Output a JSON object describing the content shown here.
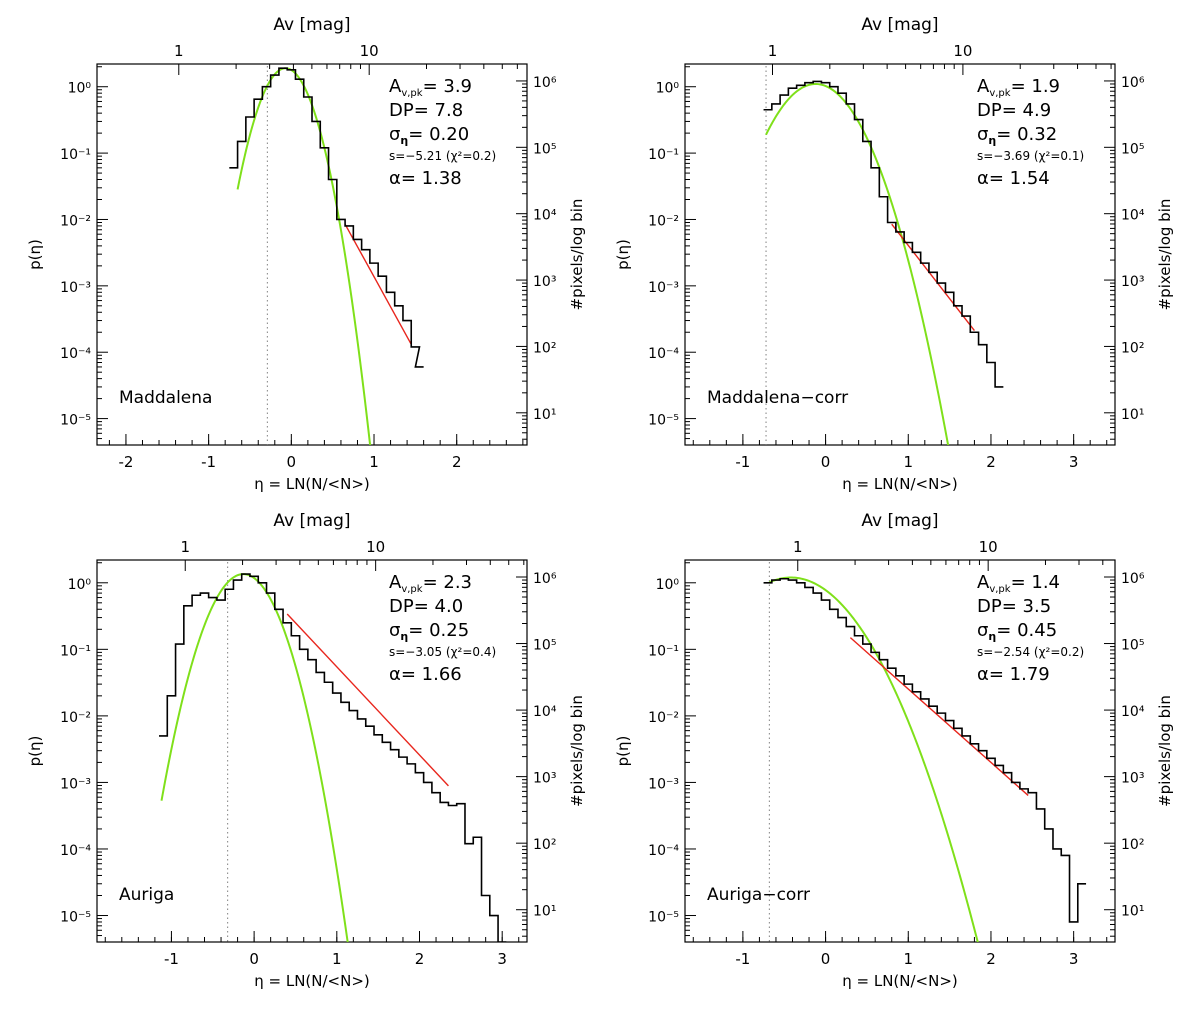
{
  "figure": {
    "panel_count": 4
  },
  "colors": {
    "histogram": "#000000",
    "lognormal_fit": "#7fe01a",
    "powerlaw_fit": "#e8261d",
    "threshold_line": "#808080"
  },
  "chart_data": [
    {
      "type": "line",
      "panel_label": "Maddalena",
      "xlabel": "η = LN(N/<N>)",
      "ylabel": "p(η)",
      "ylabel_right": "#pixels/log bin",
      "top_axis_label": "Av [mag]",
      "xlim": [
        -2.35,
        2.85
      ],
      "ylim": [
        4e-06,
        2.2
      ],
      "x_ticks": [
        -2,
        -1,
        0,
        1,
        2
      ],
      "y_ticks": [
        1e-05,
        0.0001,
        0.001,
        0.01,
        0.1,
        1
      ],
      "y_tick_labels": [
        "10⁻⁵",
        "10⁻⁴",
        "10⁻³",
        "10⁻²",
        "10⁻¹",
        "10⁰"
      ],
      "right_ticks": [
        10,
        100,
        1000,
        10000,
        100000,
        1000000
      ],
      "right_tick_labels": [
        "10¹",
        "10²",
        "10³",
        "10⁴",
        "10⁵",
        "10⁶"
      ],
      "right_max_count": 1800000,
      "top_ticks": [
        1,
        10
      ],
      "top_tick_labels": [
        "1",
        "10"
      ],
      "top_ref_av": 3.9,
      "threshold_eta": -0.29,
      "annotations": {
        "avpk": "A",
        "avpk_sub": "v,pk",
        "avpk_value": "= 3.9",
        "dp": "DP= 7.8",
        "sigma": "σ",
        "sigma_sub": "η",
        "sigma_value": "= 0.20",
        "slope": "s=−5.21 (χ²=0.2)",
        "alpha": "α= 1.38"
      },
      "lognormal": {
        "amplitude": 1.9,
        "mean": -0.07,
        "sigma": 0.2,
        "x_range": [
          -0.65,
          1.0
        ]
      },
      "powerlaw": {
        "slope": -5.21,
        "x_range": [
          0.65,
          1.45
        ],
        "y_start": 0.0085
      },
      "histogram": {
        "x": [
          -0.7,
          -0.6,
          -0.5,
          -0.4,
          -0.3,
          -0.2,
          -0.1,
          0.0,
          0.1,
          0.2,
          0.3,
          0.4,
          0.5,
          0.6,
          0.7,
          0.8,
          0.9,
          1.0,
          1.1,
          1.2,
          1.3,
          1.4,
          1.5,
          1.55
        ],
        "y": [
          0.06,
          0.15,
          0.35,
          0.65,
          1.0,
          1.5,
          1.9,
          1.8,
          1.3,
          0.7,
          0.3,
          0.12,
          0.04,
          0.01,
          0.008,
          0.005,
          0.0035,
          0.0022,
          0.0014,
          0.0008,
          0.0005,
          0.0003,
          0.00012,
          6e-05
        ]
      }
    },
    {
      "type": "line",
      "panel_label": "Maddalena−corr",
      "xlabel": "η = LN(N/<N>)",
      "ylabel": "p(η)",
      "ylabel_right": "#pixels/log bin",
      "top_axis_label": "Av [mag]",
      "xlim": [
        -1.7,
        3.5
      ],
      "ylim": [
        4e-06,
        2.2
      ],
      "x_ticks": [
        -1,
        0,
        1,
        2,
        3
      ],
      "y_ticks": [
        1e-05,
        0.0001,
        0.001,
        0.01,
        0.1,
        1
      ],
      "y_tick_labels": [
        "10⁻⁵",
        "10⁻⁴",
        "10⁻³",
        "10⁻²",
        "10⁻¹",
        "10⁰"
      ],
      "right_ticks": [
        10,
        100,
        1000,
        10000,
        100000,
        1000000
      ],
      "right_tick_labels": [
        "10¹",
        "10²",
        "10³",
        "10⁴",
        "10⁵",
        "10⁶"
      ],
      "right_max_count": 1800000,
      "top_ticks": [
        1,
        10
      ],
      "top_tick_labels": [
        "1",
        "10"
      ],
      "top_ref_av": 1.9,
      "threshold_eta": -0.72,
      "annotations": {
        "avpk": "A",
        "avpk_sub": "v,pk",
        "avpk_value": "= 1.9",
        "dp": "DP= 4.9",
        "sigma": "σ",
        "sigma_sub": "η",
        "sigma_value": "= 0.32",
        "slope": "s=−3.69 (χ²=0.1)",
        "alpha": "α= 1.54"
      },
      "lognormal": {
        "amplitude": 1.1,
        "mean": -0.12,
        "sigma": 0.32,
        "x_range": [
          -0.72,
          1.5
        ]
      },
      "powerlaw": {
        "slope": -3.69,
        "x_range": [
          0.8,
          1.8
        ],
        "y_start": 0.0085
      },
      "histogram": {
        "x": [
          -0.7,
          -0.6,
          -0.5,
          -0.4,
          -0.3,
          -0.2,
          -0.1,
          0.0,
          0.1,
          0.2,
          0.3,
          0.4,
          0.5,
          0.6,
          0.7,
          0.8,
          0.9,
          1.0,
          1.1,
          1.2,
          1.3,
          1.4,
          1.5,
          1.6,
          1.7,
          1.8,
          1.9,
          2.0,
          2.1
        ],
        "y": [
          0.45,
          0.55,
          0.75,
          0.95,
          1.05,
          1.15,
          1.2,
          1.15,
          1.0,
          0.8,
          0.55,
          0.32,
          0.15,
          0.06,
          0.022,
          0.009,
          0.0065,
          0.0045,
          0.0032,
          0.0022,
          0.0016,
          0.0011,
          0.0008,
          0.0005,
          0.00035,
          0.0002,
          0.00013,
          7e-05,
          3e-05
        ]
      }
    },
    {
      "type": "line",
      "panel_label": "Auriga",
      "xlabel": "η = LN(N/<N>)",
      "ylabel": "p(η)",
      "ylabel_right": "#pixels/log bin",
      "top_axis_label": "Av [mag]",
      "xlim": [
        -1.9,
        3.3
      ],
      "ylim": [
        4e-06,
        2.2
      ],
      "x_ticks": [
        -1,
        0,
        1,
        2,
        3
      ],
      "y_ticks": [
        1e-05,
        0.0001,
        0.001,
        0.01,
        0.1,
        1
      ],
      "y_tick_labels": [
        "10⁻⁵",
        "10⁻⁴",
        "10⁻³",
        "10⁻²",
        "10⁻¹",
        "10⁰"
      ],
      "right_ticks": [
        10,
        100,
        1000,
        10000,
        100000,
        1000000
      ],
      "right_tick_labels": [
        "10¹",
        "10²",
        "10³",
        "10⁴",
        "10⁵",
        "10⁶"
      ],
      "right_max_count": 1800000,
      "top_ticks": [
        1,
        10
      ],
      "top_tick_labels": [
        "1",
        "10"
      ],
      "top_ref_av": 2.3,
      "threshold_eta": -0.32,
      "annotations": {
        "avpk": "A",
        "avpk_sub": "v,pk",
        "avpk_value": "= 2.3",
        "dp": "DP= 4.0",
        "sigma": "σ",
        "sigma_sub": "η",
        "sigma_value": "= 0.25",
        "slope": "s=−3.05 (χ²=0.4)",
        "alpha": "α= 1.66"
      },
      "lognormal": {
        "amplitude": 1.35,
        "mean": -0.13,
        "sigma": 0.25,
        "x_range": [
          -1.12,
          1.2
        ]
      },
      "powerlaw": {
        "slope": -3.05,
        "x_range": [
          0.4,
          2.35
        ],
        "y_start": 0.34
      },
      "histogram": {
        "x": [
          -1.1,
          -1.0,
          -0.9,
          -0.8,
          -0.7,
          -0.6,
          -0.5,
          -0.4,
          -0.3,
          -0.2,
          -0.1,
          0.0,
          0.1,
          0.2,
          0.3,
          0.4,
          0.5,
          0.6,
          0.7,
          0.8,
          0.9,
          1.0,
          1.1,
          1.2,
          1.3,
          1.4,
          1.5,
          1.6,
          1.7,
          1.8,
          1.9,
          2.0,
          2.1,
          2.2,
          2.3,
          2.4,
          2.5,
          2.6,
          2.7,
          2.8,
          2.9,
          3.0
        ],
        "y": [
          0.005,
          0.02,
          0.12,
          0.45,
          0.65,
          0.7,
          0.6,
          0.55,
          0.8,
          1.1,
          1.35,
          1.25,
          1.0,
          0.7,
          0.4,
          0.25,
          0.16,
          0.1,
          0.07,
          0.045,
          0.032,
          0.022,
          0.016,
          0.012,
          0.009,
          0.007,
          0.0052,
          0.004,
          0.0031,
          0.0024,
          0.0019,
          0.0014,
          0.001,
          0.0007,
          0.0005,
          0.00045,
          0.00048,
          0.00012,
          0.00015,
          2e-05,
          1e-05,
          4e-06
        ]
      }
    },
    {
      "type": "line",
      "panel_label": "Auriga−corr",
      "xlabel": "η = LN(N/<N>)",
      "ylabel": "p(η)",
      "ylabel_right": "#pixels/log bin",
      "top_axis_label": "Av [mag]",
      "xlim": [
        -1.7,
        3.5
      ],
      "ylim": [
        4e-06,
        2.2
      ],
      "x_ticks": [
        -1,
        0,
        1,
        2,
        3
      ],
      "y_ticks": [
        1e-05,
        0.0001,
        0.001,
        0.01,
        0.1,
        1
      ],
      "y_tick_labels": [
        "10⁻⁵",
        "10⁻⁴",
        "10⁻³",
        "10⁻²",
        "10⁻¹",
        "10⁰"
      ],
      "right_ticks": [
        10,
        100,
        1000,
        10000,
        100000,
        1000000
      ],
      "right_tick_labels": [
        "10¹",
        "10²",
        "10³",
        "10⁴",
        "10⁵",
        "10⁶"
      ],
      "right_max_count": 1800000,
      "top_ticks": [
        1,
        10
      ],
      "top_tick_labels": [
        "1",
        "10"
      ],
      "top_ref_av": 1.4,
      "threshold_eta": -0.68,
      "annotations": {
        "avpk": "A",
        "avpk_sub": "v,pk",
        "avpk_value": "= 1.4",
        "dp": "DP= 3.5",
        "sigma": "σ",
        "sigma_sub": "η",
        "sigma_value": "= 0.45",
        "slope": "s=−2.54 (χ²=0.2)",
        "alpha": "α= 1.79"
      },
      "lognormal": {
        "amplitude": 1.2,
        "mean": -0.42,
        "sigma": 0.45,
        "x_range": [
          -0.68,
          1.9
        ]
      },
      "powerlaw": {
        "slope": -2.54,
        "x_range": [
          0.3,
          2.45
        ],
        "y_start": 0.15
      },
      "histogram": {
        "x": [
          -0.7,
          -0.6,
          -0.5,
          -0.4,
          -0.3,
          -0.2,
          -0.1,
          0.0,
          0.1,
          0.2,
          0.3,
          0.4,
          0.5,
          0.6,
          0.7,
          0.8,
          0.9,
          1.0,
          1.1,
          1.2,
          1.3,
          1.4,
          1.5,
          1.6,
          1.7,
          1.8,
          1.9,
          2.0,
          2.1,
          2.2,
          2.3,
          2.4,
          2.5,
          2.6,
          2.7,
          2.8,
          2.9,
          3.0,
          3.1
        ],
        "y": [
          1.0,
          1.1,
          1.15,
          1.1,
          1.0,
          0.85,
          0.7,
          0.55,
          0.4,
          0.3,
          0.22,
          0.16,
          0.12,
          0.09,
          0.07,
          0.052,
          0.04,
          0.03,
          0.023,
          0.018,
          0.014,
          0.011,
          0.0085,
          0.0065,
          0.005,
          0.0038,
          0.003,
          0.0023,
          0.0018,
          0.0014,
          0.001,
          0.0008,
          0.0007,
          0.0004,
          0.0002,
          0.0001,
          8e-05,
          8e-06,
          3e-05
        ]
      }
    }
  ]
}
